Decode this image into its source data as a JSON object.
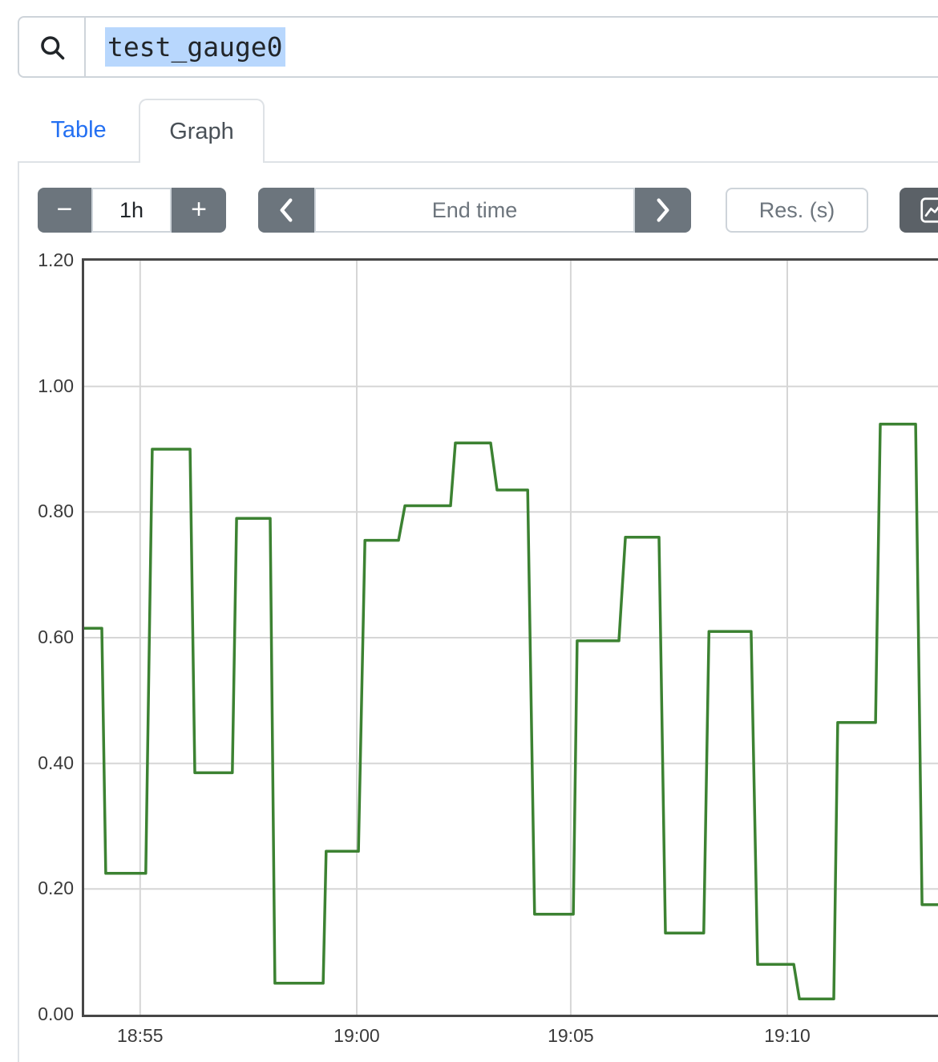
{
  "search": {
    "value": "test_gauge0"
  },
  "tabs": {
    "table": "Table",
    "graph": "Graph"
  },
  "controls": {
    "minus_label": "−",
    "duration_value": "1h",
    "plus_label": "+",
    "end_time_placeholder": "End time",
    "resolution_placeholder": "Res. (s)"
  },
  "colors": {
    "link_blue": "#2470f2",
    "button_gray": "#6c757d",
    "selection_blue": "#b8d7fd",
    "input_border": "#ced4da",
    "panel_border": "#dee2e6",
    "plot_border": "#474747",
    "gridline": "#d6d6d6",
    "line_green": "#3c8232"
  },
  "chart_data": {
    "type": "line",
    "series_name": "test_gauge0",
    "line_color": "#3c8232",
    "grid": true,
    "legend_position": "none",
    "ylim": [
      0,
      1.2
    ],
    "yticks": [
      0,
      0.2,
      0.4,
      0.6,
      0.8,
      1.0,
      1.2
    ],
    "ytick_labels": [
      "0.00",
      "0.20",
      "0.40",
      "0.60",
      "0.80",
      "1.00",
      "1.20"
    ],
    "x_unit": "minutes from left edge of plot (left edge ≈ 18:53:40)",
    "x_span_min": 19.83,
    "xticks": [
      {
        "label": "18:55",
        "m": 1.3
      },
      {
        "label": "19:00",
        "m": 6.33
      },
      {
        "label": "19:05",
        "m": 11.3
      },
      {
        "label": "19:10",
        "m": 16.33
      }
    ],
    "points": [
      [
        0.0,
        0.615
      ],
      [
        0.41,
        0.615
      ],
      [
        0.5,
        0.225
      ],
      [
        1.43,
        0.225
      ],
      [
        1.58,
        0.9
      ],
      [
        2.46,
        0.9
      ],
      [
        2.57,
        0.385
      ],
      [
        3.44,
        0.385
      ],
      [
        3.54,
        0.79
      ],
      [
        4.32,
        0.79
      ],
      [
        4.43,
        0.05
      ],
      [
        5.55,
        0.05
      ],
      [
        5.62,
        0.26
      ],
      [
        6.37,
        0.26
      ],
      [
        6.52,
        0.755
      ],
      [
        7.3,
        0.755
      ],
      [
        7.45,
        0.81
      ],
      [
        8.51,
        0.81
      ],
      [
        8.62,
        0.91
      ],
      [
        9.44,
        0.91
      ],
      [
        9.59,
        0.835
      ],
      [
        10.3,
        0.835
      ],
      [
        10.46,
        0.16
      ],
      [
        11.36,
        0.16
      ],
      [
        11.45,
        0.595
      ],
      [
        12.42,
        0.595
      ],
      [
        12.57,
        0.76
      ],
      [
        13.35,
        0.76
      ],
      [
        13.5,
        0.13
      ],
      [
        14.39,
        0.13
      ],
      [
        14.51,
        0.61
      ],
      [
        15.49,
        0.61
      ],
      [
        15.64,
        0.08
      ],
      [
        16.48,
        0.08
      ],
      [
        16.61,
        0.025
      ],
      [
        17.41,
        0.025
      ],
      [
        17.5,
        0.465
      ],
      [
        18.38,
        0.465
      ],
      [
        18.49,
        0.94
      ],
      [
        19.31,
        0.94
      ],
      [
        19.46,
        0.175
      ],
      [
        19.83,
        0.175
      ]
    ]
  }
}
